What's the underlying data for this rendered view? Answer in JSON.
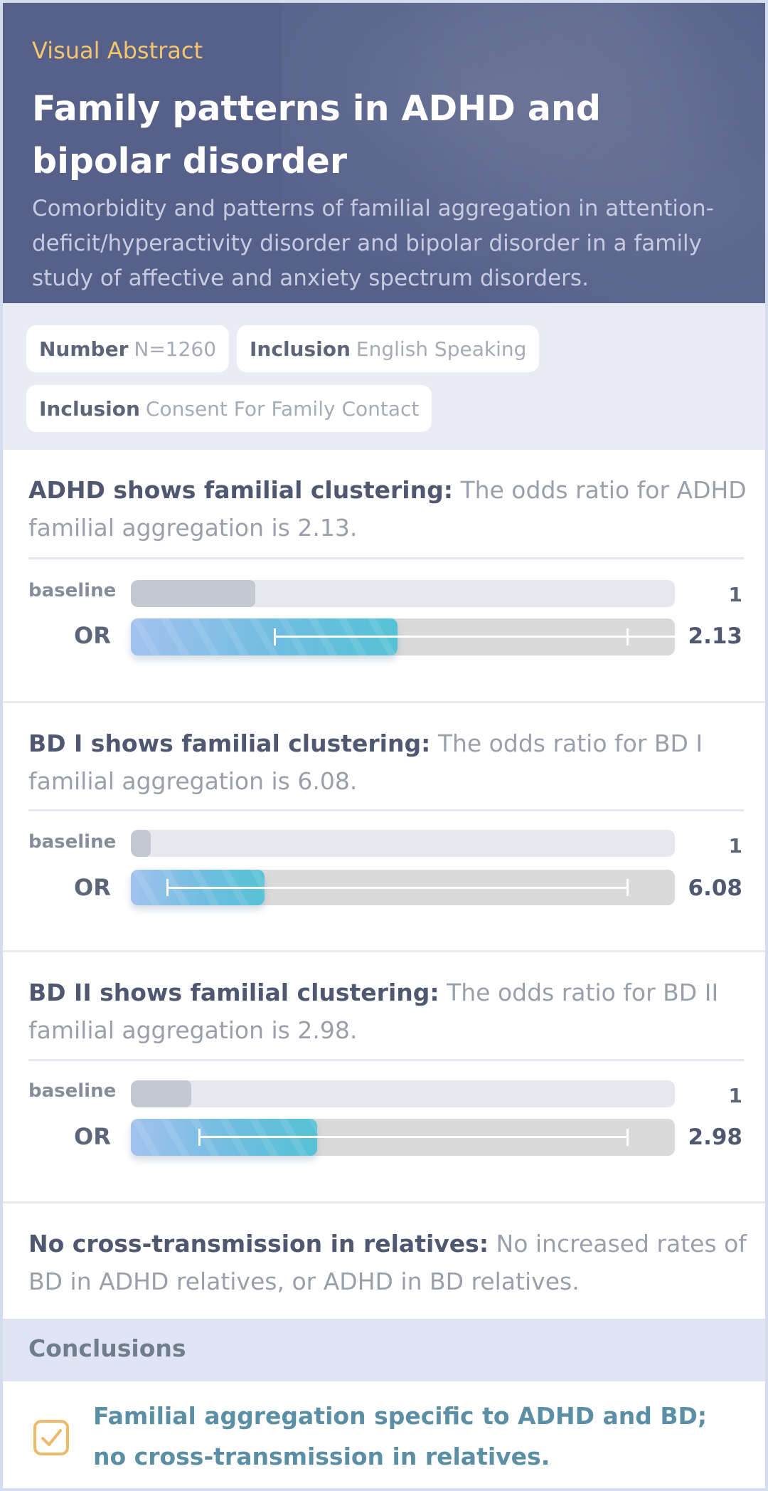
{
  "header": {
    "eyebrow": "Visual Abstract",
    "title": "Family patterns in ADHD and bipolar disorder",
    "subtitle": "Comorbidity and patterns of familial aggregation in attention-deficit/hyperactivity disorder and bipolar disorder in a family study of affective and anxiety spectrum disorders."
  },
  "tags": [
    {
      "key": "Number",
      "value": "N=1260"
    },
    {
      "key": "Inclusion",
      "value": "English Speaking"
    },
    {
      "key": "Inclusion",
      "value": "Consent For Family Contact"
    }
  ],
  "findings": [
    {
      "heading": "ADHD shows familial clustering:",
      "text": "The odds ratio for ADHD familial aggregation is 2.13.",
      "baseline_label": "baseline",
      "baseline_value": "1",
      "or_label": "OR",
      "or_value": "2.13"
    },
    {
      "heading": "BD I shows familial clustering:",
      "text": "The odds ratio for BD I familial aggregation is 6.08.",
      "baseline_label": "baseline",
      "baseline_value": "1",
      "or_label": "OR",
      "or_value": "6.08"
    },
    {
      "heading": "BD II shows familial clustering:",
      "text": "The odds ratio for BD II familial aggregation is 2.98.",
      "baseline_label": "baseline",
      "baseline_value": "1",
      "or_label": "OR",
      "or_value": "2.98"
    },
    {
      "heading": "No cross-transmission in relatives:",
      "text": "No increased rates of BD in ADHD relatives, or ADHD in BD relatives."
    }
  ],
  "conclusions": {
    "heading": "Conclusions",
    "icon": "check-square-icon",
    "text": "Familial aggregation specific to ADHD and BD; no cross-transmission in relatives."
  },
  "colors": {
    "header_bg": "#566089",
    "eyebrow": "#f3c56d",
    "bar_gradient_start": "#a2c2ee",
    "bar_gradient_end": "#56c2d5",
    "conclusion_text": "#5b8fa6",
    "check_icon": "#efb96a"
  }
}
